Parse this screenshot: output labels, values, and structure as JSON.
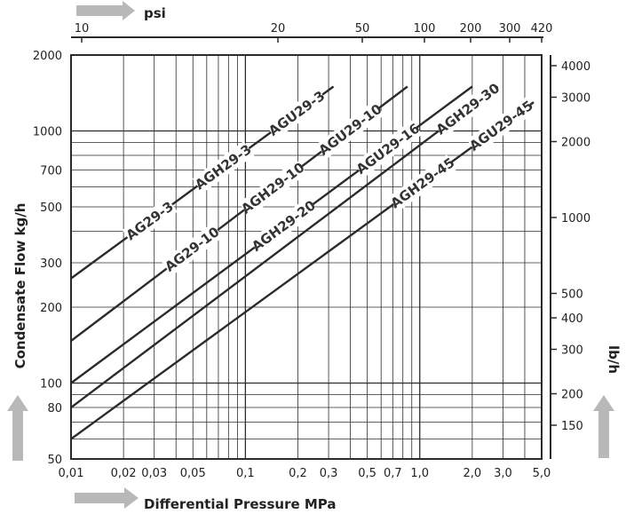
{
  "chart_data": {
    "type": "line",
    "title": "",
    "xlabel": "Differential Pressure MPa",
    "ylabel": "Condensate Flow kg/h",
    "x_scale": "log",
    "y_scale": "log",
    "xlim": [
      0.01,
      5.0
    ],
    "ylim": [
      50,
      2000
    ],
    "grid": true,
    "x_ticks": [
      "0,01",
      "0,02",
      "0,03",
      "0,05",
      "0,1",
      "0,2",
      "0,3",
      "0,5",
      "0,7",
      "1,0",
      "2,0",
      "3,0",
      "5,0"
    ],
    "x_tick_values": [
      0.01,
      0.02,
      0.03,
      0.05,
      0.1,
      0.2,
      0.3,
      0.5,
      0.7,
      1.0,
      2.0,
      3.0,
      5.0
    ],
    "y_ticks": [
      "50",
      "80",
      "100",
      "200",
      "300",
      "500",
      "700",
      "1000",
      "2000"
    ],
    "y_tick_values": [
      50,
      80,
      100,
      200,
      300,
      500,
      700,
      1000,
      2000
    ],
    "top_axis": {
      "label": "psi",
      "ticks": [
        "10",
        "20",
        "50",
        "100",
        "200",
        "300",
        "420"
      ],
      "tick_values": [
        10,
        20,
        50,
        100,
        200,
        300,
        420
      ]
    },
    "right_axis": {
      "label": "lb/h",
      "ticks": [
        "4000",
        "3000",
        "2000",
        "1000",
        "500",
        "400",
        "300",
        "200",
        "150"
      ],
      "tick_values": [
        4000,
        3000,
        2000,
        1000,
        500,
        400,
        300,
        200,
        150
      ]
    },
    "series": [
      {
        "x": [
          0.01,
          0.32
        ],
        "y": [
          260,
          1500
        ],
        "labels": [
          "AG29-3",
          "AGH29-3",
          "AGU29-3"
        ]
      },
      {
        "x": [
          0.01,
          0.85
        ],
        "y": [
          147,
          1500
        ],
        "labels": [
          "AG29-10",
          "AGH29-10",
          "AGU29-10"
        ]
      },
      {
        "x": [
          0.01,
          2.0
        ],
        "y": [
          100,
          1500
        ],
        "labels": [
          "AGH29-20",
          "AGU29-16"
        ]
      },
      {
        "x": [
          0.01,
          2.8
        ],
        "y": [
          80,
          1500
        ],
        "labels": [
          "AGH29-30"
        ]
      },
      {
        "x": [
          0.01,
          4.5
        ],
        "y": [
          60,
          1300
        ],
        "labels": [
          "AGH29-45",
          "AGU29-45"
        ]
      }
    ]
  },
  "colors": {
    "line": "#2b2b2b",
    "grid": "#2b2b2b",
    "arrow": "#b8b8b8"
  }
}
